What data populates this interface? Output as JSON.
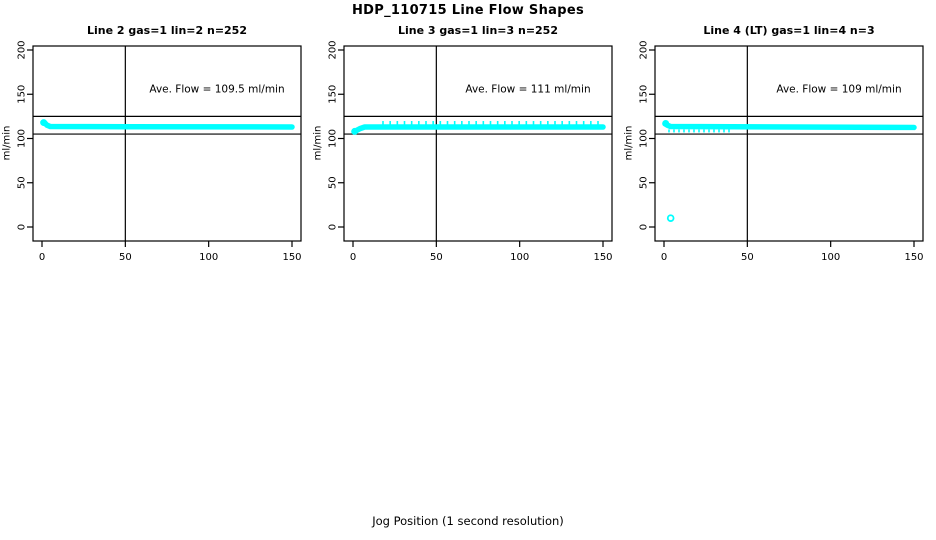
{
  "figure": {
    "title": "HDP_110715  Line Flow Shapes",
    "xlabel": "Jog Position (1 second resolution)",
    "ylabel": "ml/min",
    "background_color": "#ffffff",
    "axis_color": "#000000",
    "data_color": "#00ffff"
  },
  "chart_data": [
    {
      "type": "scatter",
      "title": "Line 2 gas=1 lin=2 n=252",
      "n": 252,
      "annotation": "Ave. Flow =  109.5  ml/min",
      "ave_flow_ml_min": 109.5,
      "ylabel": "ml/min",
      "xlim": [
        0,
        150
      ],
      "ylim": [
        0,
        200
      ],
      "xticks": [
        0,
        50,
        100,
        150
      ],
      "yticks": [
        0,
        50,
        100,
        150,
        200
      ],
      "vline_x": 50,
      "hlines": [
        105,
        125
      ],
      "annotation_pos": {
        "x": 105,
        "y": 152
      },
      "series_profile": [
        [
          1,
          118
        ],
        [
          2,
          117
        ],
        [
          3,
          115
        ],
        [
          5,
          113.5
        ],
        [
          150,
          113
        ]
      ],
      "start_marker": [
        1,
        118
      ],
      "outliers": [],
      "jitter": null
    },
    {
      "type": "scatter",
      "title": "Line 3 gas=1 lin=3 n=252",
      "n": 252,
      "annotation": "Ave. Flow =  111  ml/min",
      "ave_flow_ml_min": 111,
      "ylabel": "ml/min",
      "xlim": [
        0,
        150
      ],
      "ylim": [
        0,
        200
      ],
      "xticks": [
        0,
        50,
        100,
        150
      ],
      "yticks": [
        0,
        50,
        100,
        150,
        200
      ],
      "vline_x": 50,
      "hlines": [
        105,
        125
      ],
      "annotation_pos": {
        "x": 105,
        "y": 152
      },
      "series_profile": [
        [
          1,
          108
        ],
        [
          2,
          109
        ],
        [
          4,
          111
        ],
        [
          7,
          113
        ],
        [
          150,
          113
        ]
      ],
      "start_marker": [
        1,
        108
      ],
      "outliers": [],
      "jitter": {
        "direction": "up",
        "from": 18,
        "to": 149,
        "step": 4.3
      }
    },
    {
      "type": "scatter",
      "title": "Line 4 (LT) gas=1 lin=4 n=3",
      "n": 3,
      "annotation": "Ave. Flow =  109  ml/min",
      "ave_flow_ml_min": 109,
      "ylabel": "ml/min",
      "xlim": [
        0,
        150
      ],
      "ylim": [
        0,
        200
      ],
      "xticks": [
        0,
        50,
        100,
        150
      ],
      "yticks": [
        0,
        50,
        100,
        150,
        200
      ],
      "vline_x": 50,
      "hlines": [
        105,
        125
      ],
      "annotation_pos": {
        "x": 105,
        "y": 152
      },
      "series_profile": [
        [
          1,
          117
        ],
        [
          2,
          115
        ],
        [
          4,
          113.5
        ],
        [
          150,
          112.5
        ]
      ],
      "start_marker": [
        1,
        117
      ],
      "outliers": [
        [
          4,
          10
        ]
      ],
      "jitter": {
        "direction": "down",
        "from": 3,
        "to": 40,
        "step": 3
      }
    }
  ]
}
